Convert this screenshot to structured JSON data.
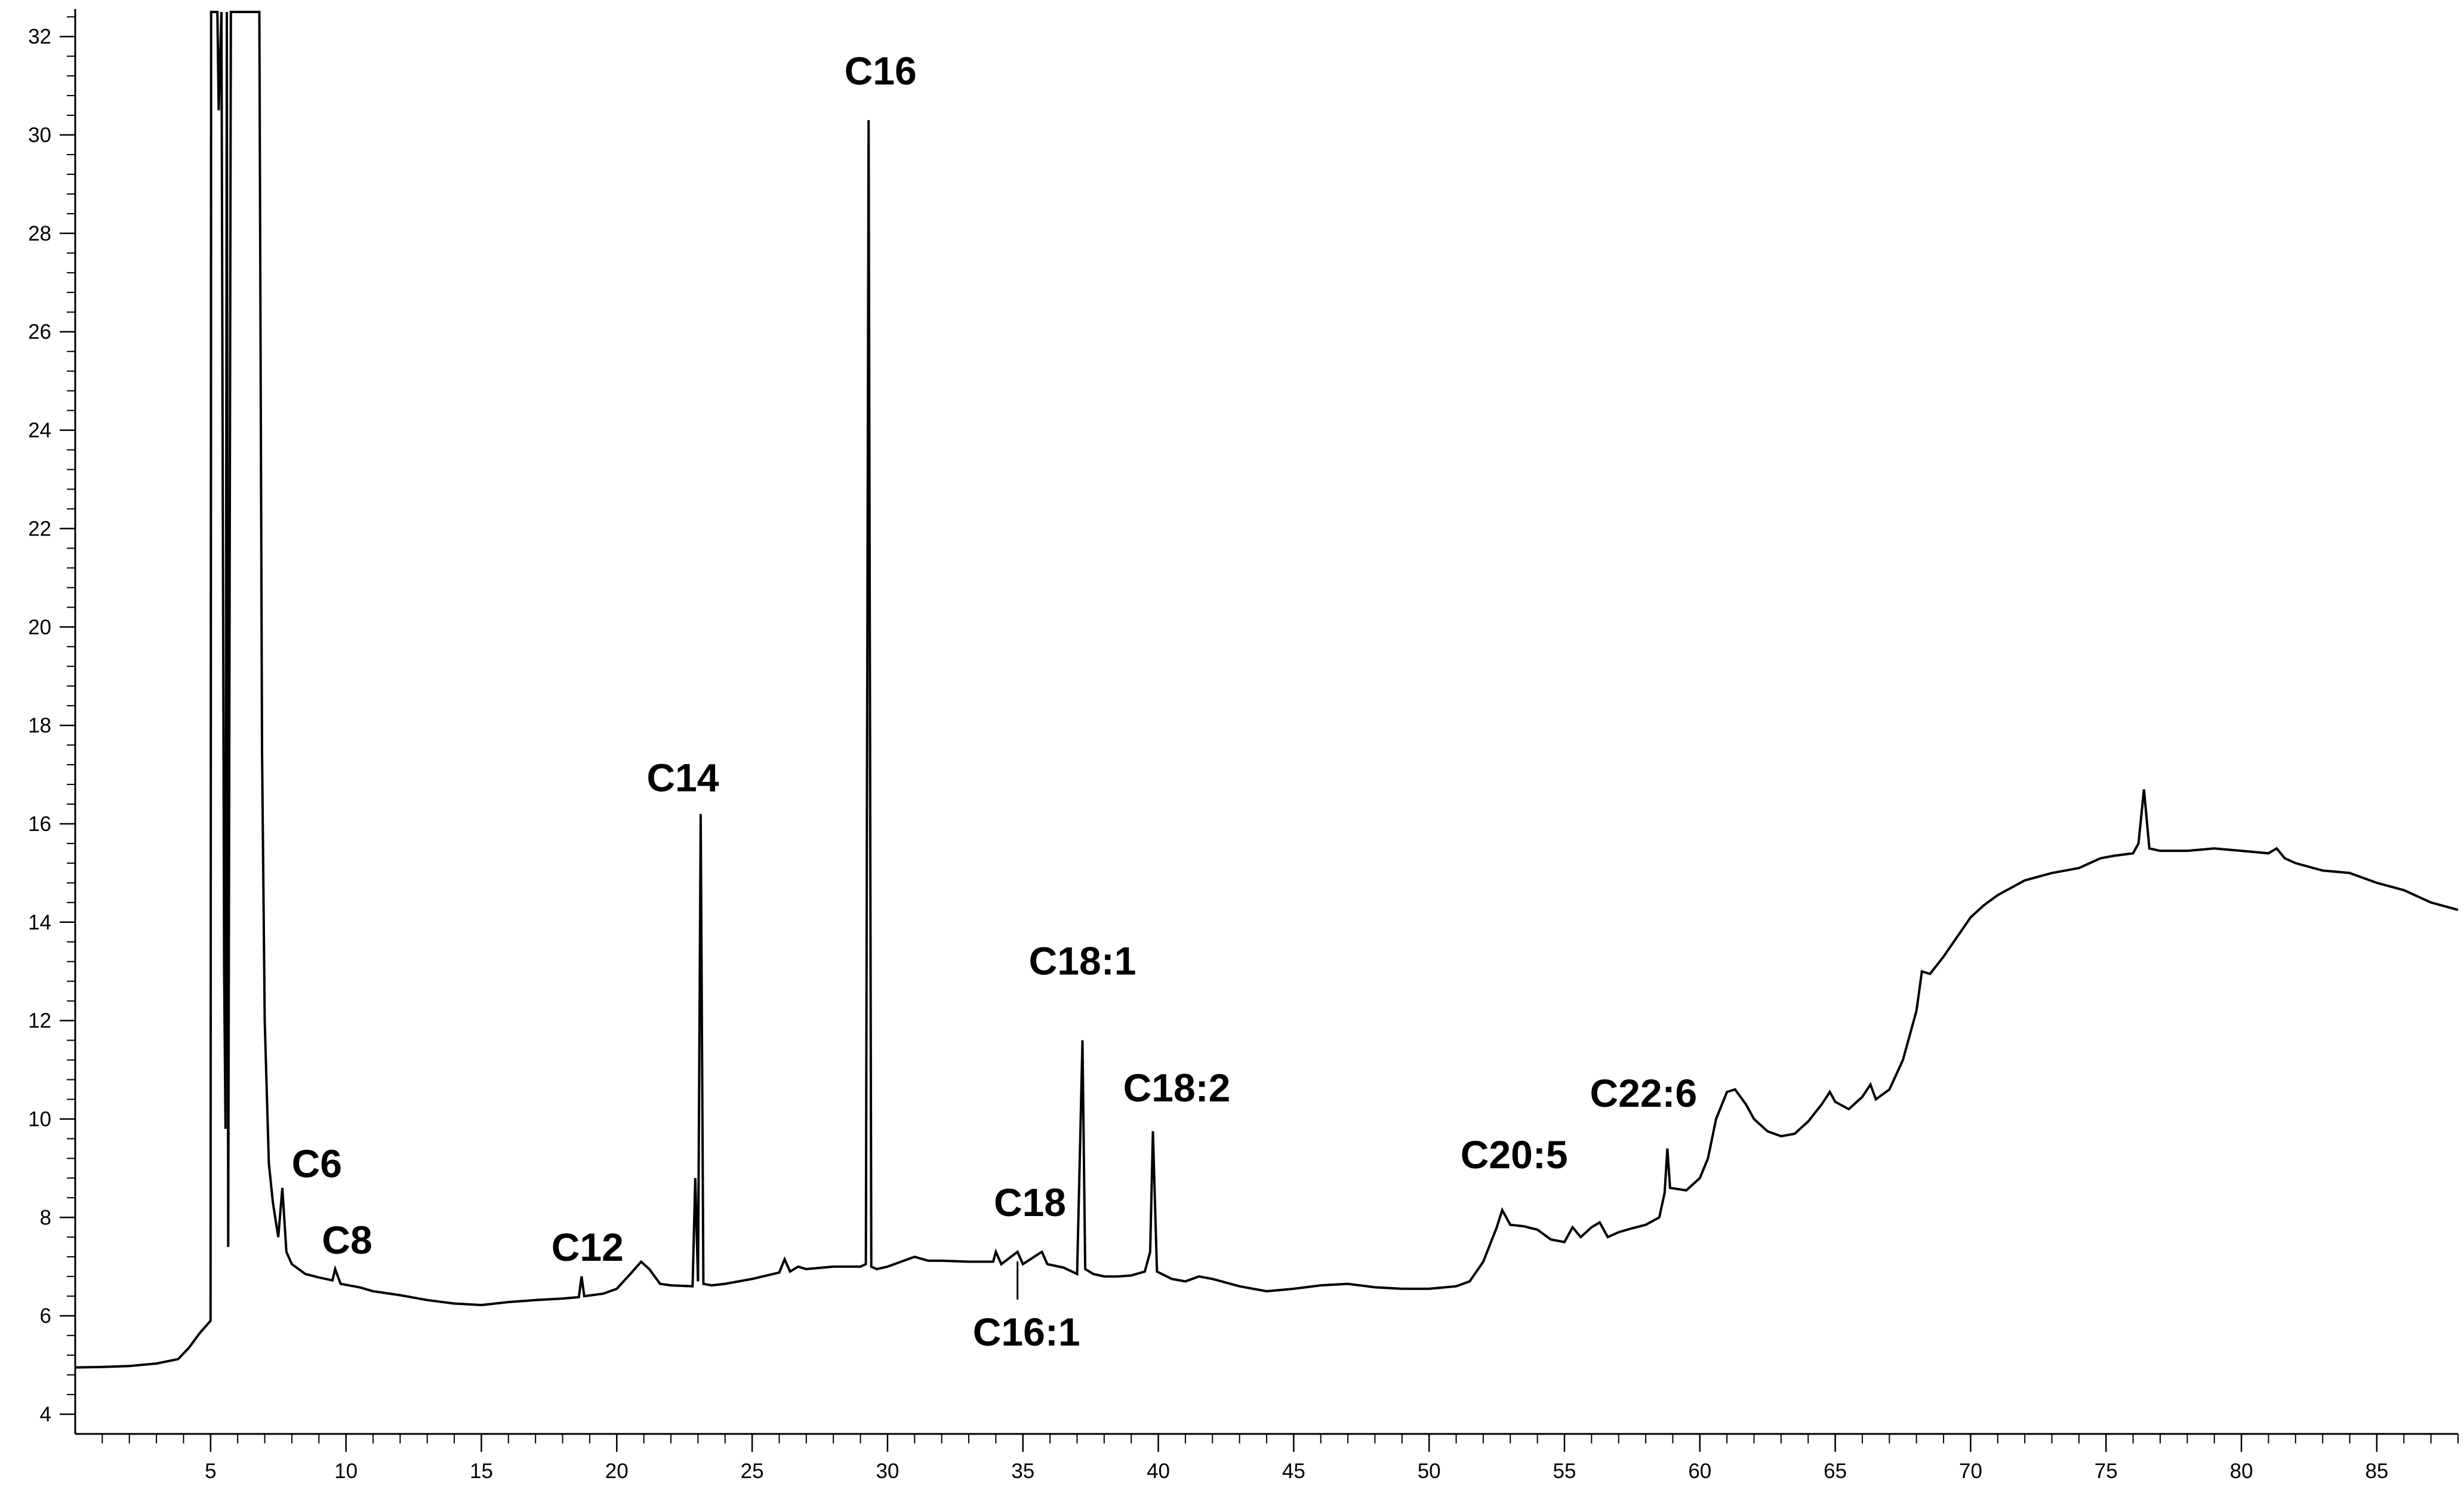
{
  "chart_data": {
    "type": "line",
    "title": "",
    "xlabel": "",
    "ylabel": "",
    "xlim": [
      0,
      88
    ],
    "ylim": [
      3.6,
      32.5
    ],
    "grid": false,
    "legend": "none",
    "x_ticks": [
      5,
      10,
      15,
      20,
      25,
      30,
      35,
      40,
      45,
      50,
      55,
      60,
      65,
      70,
      75,
      80,
      85
    ],
    "y_ticks": [
      4,
      6,
      8,
      10,
      12,
      14,
      16,
      18,
      20,
      22,
      24,
      26,
      28,
      30,
      32
    ],
    "series": [
      {
        "points": [
          [
            0.0,
            4.95
          ],
          [
            1.0,
            4.96
          ],
          [
            2.0,
            4.98
          ],
          [
            3.0,
            5.03
          ],
          [
            3.8,
            5.12
          ],
          [
            4.2,
            5.35
          ],
          [
            4.6,
            5.65
          ],
          [
            5.0,
            5.9
          ],
          [
            5.02,
            32.5
          ],
          [
            5.25,
            32.5
          ],
          [
            5.3,
            30.5
          ],
          [
            5.4,
            32.5
          ],
          [
            5.5,
            13.0
          ],
          [
            5.55,
            9.8
          ],
          [
            5.6,
            32.5
          ],
          [
            5.65,
            7.4
          ],
          [
            5.75,
            32.5
          ],
          [
            6.8,
            32.5
          ],
          [
            6.9,
            17.5
          ],
          [
            7.0,
            12.0
          ],
          [
            7.15,
            9.1
          ],
          [
            7.3,
            8.3
          ],
          [
            7.5,
            7.6
          ],
          [
            7.65,
            8.6
          ],
          [
            7.8,
            7.3
          ],
          [
            8.0,
            7.05
          ],
          [
            8.5,
            6.85
          ],
          [
            9.0,
            6.78
          ],
          [
            9.5,
            6.72
          ],
          [
            9.6,
            6.95
          ],
          [
            9.8,
            6.65
          ],
          [
            10.5,
            6.58
          ],
          [
            11.0,
            6.5
          ],
          [
            12.0,
            6.42
          ],
          [
            13.0,
            6.32
          ],
          [
            14.0,
            6.25
          ],
          [
            15.0,
            6.22
          ],
          [
            16.0,
            6.28
          ],
          [
            17.0,
            6.32
          ],
          [
            18.0,
            6.35
          ],
          [
            18.6,
            6.38
          ],
          [
            18.7,
            6.8
          ],
          [
            18.8,
            6.4
          ],
          [
            19.5,
            6.45
          ],
          [
            20.0,
            6.55
          ],
          [
            20.5,
            6.85
          ],
          [
            20.9,
            7.1
          ],
          [
            21.2,
            6.95
          ],
          [
            21.6,
            6.65
          ],
          [
            22.0,
            6.62
          ],
          [
            22.8,
            6.6
          ],
          [
            22.9,
            8.8
          ],
          [
            23.0,
            6.7
          ],
          [
            23.1,
            16.2
          ],
          [
            23.2,
            6.65
          ],
          [
            23.5,
            6.62
          ],
          [
            24.0,
            6.65
          ],
          [
            25.0,
            6.75
          ],
          [
            26.0,
            6.88
          ],
          [
            26.2,
            7.15
          ],
          [
            26.4,
            6.9
          ],
          [
            26.7,
            7.0
          ],
          [
            27.0,
            6.95
          ],
          [
            28.0,
            7.0
          ],
          [
            29.0,
            7.0
          ],
          [
            29.2,
            7.05
          ],
          [
            29.3,
            30.3
          ],
          [
            29.4,
            7.0
          ],
          [
            29.6,
            6.95
          ],
          [
            30.0,
            7.0
          ],
          [
            30.5,
            7.1
          ],
          [
            31.0,
            7.2
          ],
          [
            31.5,
            7.12
          ],
          [
            32.0,
            7.12
          ],
          [
            33.0,
            7.1
          ],
          [
            33.9,
            7.1
          ],
          [
            34.0,
            7.3
          ],
          [
            34.2,
            7.05
          ],
          [
            34.8,
            7.3
          ],
          [
            35.0,
            7.05
          ],
          [
            35.7,
            7.3
          ],
          [
            35.9,
            7.05
          ],
          [
            36.5,
            6.98
          ],
          [
            37.0,
            6.85
          ],
          [
            37.1,
            9.2
          ],
          [
            37.2,
            11.6
          ],
          [
            37.3,
            6.95
          ],
          [
            37.6,
            6.85
          ],
          [
            38.0,
            6.8
          ],
          [
            38.5,
            6.8
          ],
          [
            39.0,
            6.82
          ],
          [
            39.5,
            6.9
          ],
          [
            39.7,
            7.3
          ],
          [
            39.8,
            9.75
          ],
          [
            39.95,
            6.9
          ],
          [
            40.5,
            6.75
          ],
          [
            41.0,
            6.7
          ],
          [
            41.5,
            6.8
          ],
          [
            42.0,
            6.75
          ],
          [
            43.0,
            6.6
          ],
          [
            44.0,
            6.5
          ],
          [
            45.0,
            6.55
          ],
          [
            46.0,
            6.62
          ],
          [
            47.0,
            6.65
          ],
          [
            48.0,
            6.58
          ],
          [
            49.0,
            6.55
          ],
          [
            50.0,
            6.55
          ],
          [
            51.0,
            6.6
          ],
          [
            51.5,
            6.7
          ],
          [
            52.0,
            7.1
          ],
          [
            52.5,
            7.8
          ],
          [
            52.7,
            8.15
          ],
          [
            53.0,
            7.85
          ],
          [
            53.5,
            7.82
          ],
          [
            54.0,
            7.75
          ],
          [
            54.5,
            7.55
          ],
          [
            55.0,
            7.5
          ],
          [
            55.3,
            7.8
          ],
          [
            55.6,
            7.6
          ],
          [
            56.0,
            7.8
          ],
          [
            56.3,
            7.9
          ],
          [
            56.6,
            7.6
          ],
          [
            57.0,
            7.7
          ],
          [
            57.5,
            7.78
          ],
          [
            58.0,
            7.85
          ],
          [
            58.5,
            8.0
          ],
          [
            58.7,
            8.5
          ],
          [
            58.8,
            9.4
          ],
          [
            58.9,
            8.6
          ],
          [
            59.5,
            8.55
          ],
          [
            60.0,
            8.8
          ],
          [
            60.3,
            9.2
          ],
          [
            60.6,
            10.0
          ],
          [
            61.0,
            10.55
          ],
          [
            61.3,
            10.6
          ],
          [
            61.7,
            10.3
          ],
          [
            62.0,
            10.0
          ],
          [
            62.5,
            9.75
          ],
          [
            63.0,
            9.65
          ],
          [
            63.5,
            9.7
          ],
          [
            64.0,
            9.95
          ],
          [
            64.5,
            10.3
          ],
          [
            64.8,
            10.55
          ],
          [
            65.0,
            10.35
          ],
          [
            65.5,
            10.2
          ],
          [
            66.0,
            10.45
          ],
          [
            66.3,
            10.7
          ],
          [
            66.5,
            10.4
          ],
          [
            67.0,
            10.6
          ],
          [
            67.5,
            11.2
          ],
          [
            68.0,
            12.2
          ],
          [
            68.2,
            13.0
          ],
          [
            68.5,
            12.95
          ],
          [
            69.0,
            13.3
          ],
          [
            69.5,
            13.7
          ],
          [
            70.0,
            14.1
          ],
          [
            70.5,
            14.35
          ],
          [
            71.0,
            14.55
          ],
          [
            72.0,
            14.85
          ],
          [
            73.0,
            15.0
          ],
          [
            74.0,
            15.1
          ],
          [
            74.8,
            15.3
          ],
          [
            75.3,
            15.35
          ],
          [
            76.0,
            15.4
          ],
          [
            76.2,
            15.6
          ],
          [
            76.4,
            16.7
          ],
          [
            76.6,
            15.5
          ],
          [
            77.0,
            15.45
          ],
          [
            78.0,
            15.45
          ],
          [
            79.0,
            15.5
          ],
          [
            80.0,
            15.45
          ],
          [
            81.0,
            15.4
          ],
          [
            81.3,
            15.5
          ],
          [
            81.6,
            15.3
          ],
          [
            82.0,
            15.2
          ],
          [
            83.0,
            15.05
          ],
          [
            84.0,
            15.0
          ],
          [
            85.0,
            14.8
          ],
          [
            86.0,
            14.65
          ],
          [
            87.0,
            14.4
          ],
          [
            88.0,
            14.25
          ]
        ]
      }
    ],
    "annotations": [
      {
        "text": "C6",
        "x": 7.6
      },
      {
        "text": "C8",
        "x": 9.6
      },
      {
        "text": "C12",
        "x": 18.7
      },
      {
        "text": "C14",
        "x": 23.1
      },
      {
        "text": "C16",
        "x": 29.3
      },
      {
        "text": "C16:1",
        "x": 34.8
      },
      {
        "text": "C18",
        "x": 35.7
      },
      {
        "text": "C18:1",
        "x": 37.2
      },
      {
        "text": "C18:2",
        "x": 39.8
      },
      {
        "text": "C20:5",
        "x": 52.7
      },
      {
        "text": "C22:6",
        "x": 58.8
      }
    ]
  }
}
